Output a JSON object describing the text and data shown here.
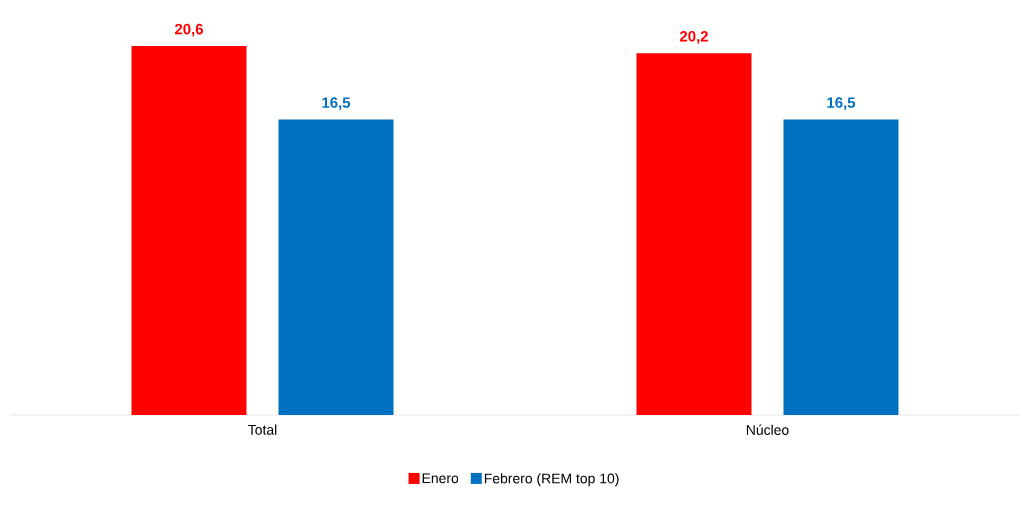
{
  "chart_data": {
    "type": "bar",
    "categories": [
      "Total",
      "Núcleo"
    ],
    "series": [
      {
        "name": "Enero",
        "color": "#ff0000",
        "values": [
          20.6,
          20.2
        ],
        "value_labels": [
          "20,6",
          "20,2"
        ]
      },
      {
        "name": "Febrero (REM top 10)",
        "color": "#0070c0",
        "values": [
          16.5,
          16.5
        ],
        "value_labels": [
          "16,5",
          "16,5"
        ]
      }
    ],
    "legend": "bottom",
    "grid": false
  }
}
